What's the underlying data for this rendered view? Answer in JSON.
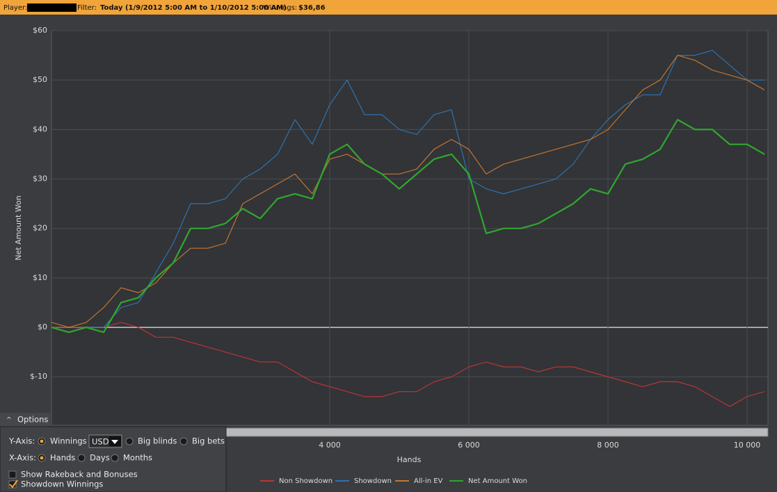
{
  "top_bar": {
    "player_label": "Player:",
    "filter_label": "Filter:",
    "filter": "Today (1/9/2012 5:00 AM to 1/10/2012 5:00 AM)",
    "winnings_label": "Winnings:",
    "winnings": "$36,86"
  },
  "options": {
    "title": "Options",
    "y_axis_label": "Y-Axis:",
    "y_options": [
      "Winnings",
      "Big blinds",
      "Big bets"
    ],
    "currency": "USD",
    "x_axis_label": "X-Axis:",
    "x_options": [
      "Hands",
      "Days",
      "Months"
    ],
    "checkboxes": [
      "Show Rakeback and Bonuses",
      "Showdown Winnings"
    ]
  },
  "chart_data": {
    "type": "line",
    "x_label": "Hands",
    "y_label": "Net Amount Won",
    "xlim": [
      0,
      10300
    ],
    "ylim": [
      -19.8,
      60
    ],
    "grid": true,
    "xticks": [
      {
        "value": 4000,
        "label": "4 000"
      },
      {
        "value": 6000,
        "label": "6 000"
      },
      {
        "value": 8000,
        "label": "8 000"
      },
      {
        "value": 10000,
        "label": "10 000"
      }
    ],
    "yticks": [
      {
        "value": -10,
        "label": "$-10"
      },
      {
        "value": 0,
        "label": "$0"
      },
      {
        "value": 10,
        "label": "$10"
      },
      {
        "value": 20,
        "label": "$20"
      },
      {
        "value": 30,
        "label": "$30"
      },
      {
        "value": 40,
        "label": "$40"
      },
      {
        "value": 50,
        "label": "$50"
      },
      {
        "value": 60,
        "label": "$60"
      }
    ],
    "x": [
      0,
      250,
      500,
      750,
      1000,
      1250,
      1500,
      1750,
      2000,
      2250,
      2500,
      2750,
      3000,
      3250,
      3500,
      3750,
      4000,
      4250,
      4500,
      4750,
      5000,
      5250,
      5500,
      5750,
      6000,
      6250,
      6500,
      6750,
      7000,
      7250,
      7500,
      7750,
      8000,
      8250,
      8500,
      8750,
      9000,
      9250,
      9500,
      9750,
      10000,
      10250
    ],
    "series": [
      {
        "name": "Non Showdown",
        "color": "#b83636",
        "values": [
          0,
          0,
          0,
          0,
          1,
          0,
          -2,
          -2,
          -3,
          -4,
          -5,
          -6,
          -7,
          -7,
          -9,
          -11,
          -12,
          -13,
          -14,
          -14,
          -13,
          -13,
          -11,
          -10,
          -8,
          -7,
          -8,
          -8,
          -9,
          -8,
          -8,
          -9,
          -10,
          -11,
          -12,
          -11,
          -11,
          -12,
          -14,
          -16,
          -14,
          -13
        ]
      },
      {
        "name": "Showdown",
        "color": "#2f72b0",
        "values": [
          0,
          -1,
          0,
          0,
          4,
          5,
          11,
          17,
          25,
          25,
          26,
          30,
          32,
          35,
          42,
          37,
          45,
          50,
          43,
          43,
          40,
          39,
          43,
          44,
          30,
          28,
          27,
          28,
          29,
          30,
          33,
          38,
          42,
          45,
          47,
          47,
          55,
          55,
          56,
          53,
          50,
          50
        ]
      },
      {
        "name": "All-in EV",
        "color": "#c47632",
        "values": [
          1,
          0,
          1,
          4,
          8,
          7,
          9,
          13,
          16,
          16,
          17,
          25,
          27,
          29,
          31,
          27,
          34,
          35,
          33,
          31,
          31,
          32,
          36,
          38,
          36,
          31,
          33,
          34,
          35,
          36,
          37,
          38,
          40,
          44,
          48,
          50,
          55,
          54,
          52,
          51,
          50,
          48
        ]
      },
      {
        "name": "Net Amount Won",
        "color": "#2fa82f",
        "values": [
          0,
          -1,
          0,
          -1,
          5,
          6,
          10,
          13,
          20,
          20,
          21,
          24,
          22,
          26,
          27,
          26,
          35,
          37,
          33,
          31,
          28,
          31,
          34,
          35,
          31,
          19,
          20,
          20,
          21,
          23,
          25,
          28,
          27,
          33,
          34,
          36,
          42,
          40,
          40,
          37,
          37,
          35
        ]
      }
    ]
  }
}
